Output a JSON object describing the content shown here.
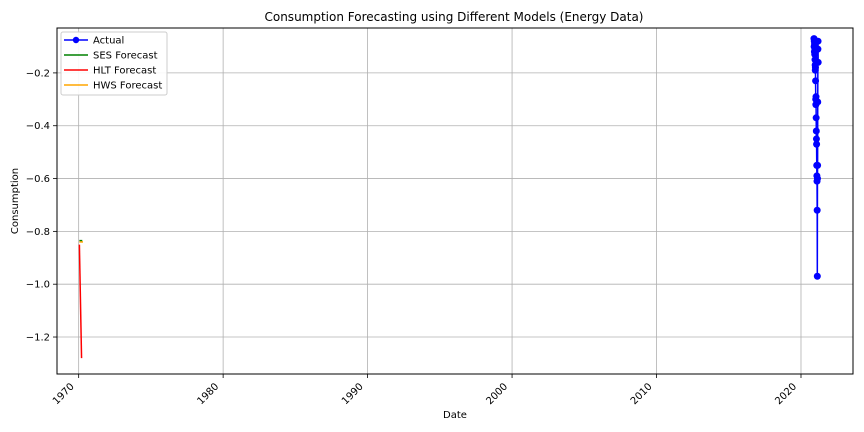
{
  "chart_data": {
    "type": "line",
    "title": "Consumption Forecasting using Different Models (Energy Data)",
    "xlabel": "Date",
    "ylabel": "Consumption",
    "xlim": [
      1968.5,
      2023.6
    ],
    "ylim": [
      -1.34,
      -0.03
    ],
    "x_ticks": [
      1970,
      1980,
      1990,
      2000,
      2010,
      2020
    ],
    "y_ticks": [
      -1.2,
      -1.0,
      -0.8,
      -0.6,
      -0.4,
      -0.2
    ],
    "y_tick_labels": [
      "−1.2",
      "−1.0",
      "−0.8",
      "−0.6",
      "−0.4",
      "−0.2"
    ],
    "grid": true,
    "legend_position": "upper-left",
    "series": [
      {
        "name": "Actual",
        "color": "#0000ff",
        "marker": "circle",
        "x": [
          2020.9,
          2020.91,
          2020.92,
          2020.93,
          2020.94,
          2020.95,
          2020.96,
          2020.97,
          2020.98,
          2020.99,
          2021.0,
          2021.01,
          2021.02,
          2021.03,
          2021.04,
          2021.05,
          2021.06,
          2021.07,
          2021.08,
          2021.09,
          2021.1,
          2021.11,
          2021.12,
          2021.13,
          2021.14,
          2021.15,
          2021.16,
          2021.17,
          2021.18,
          2021.19
        ],
        "y": [
          -0.07,
          -0.1,
          -0.08,
          -0.12,
          -0.09,
          -0.13,
          -0.11,
          -0.15,
          -0.17,
          -0.19,
          -0.18,
          -0.23,
          -0.3,
          -0.32,
          -0.29,
          -0.37,
          -0.42,
          -0.45,
          -0.47,
          -0.55,
          -0.59,
          -0.61,
          -0.72,
          -0.97,
          -0.6,
          -0.55,
          -0.31,
          -0.11,
          -0.08,
          -0.16
        ]
      },
      {
        "name": "SES Forecast",
        "color": "#008000",
        "x": [
          1970.05,
          1970.25
        ],
        "y": [
          -0.835,
          -0.835
        ]
      },
      {
        "name": "HLT Forecast",
        "color": "#ff0000",
        "x": [
          1970.05,
          1970.2
        ],
        "y": [
          -0.85,
          -1.28
        ]
      },
      {
        "name": "HWS Forecast",
        "color": "#ffa500",
        "x": [
          1970.05,
          1970.3
        ],
        "y": [
          -0.84,
          -0.84
        ]
      }
    ]
  }
}
